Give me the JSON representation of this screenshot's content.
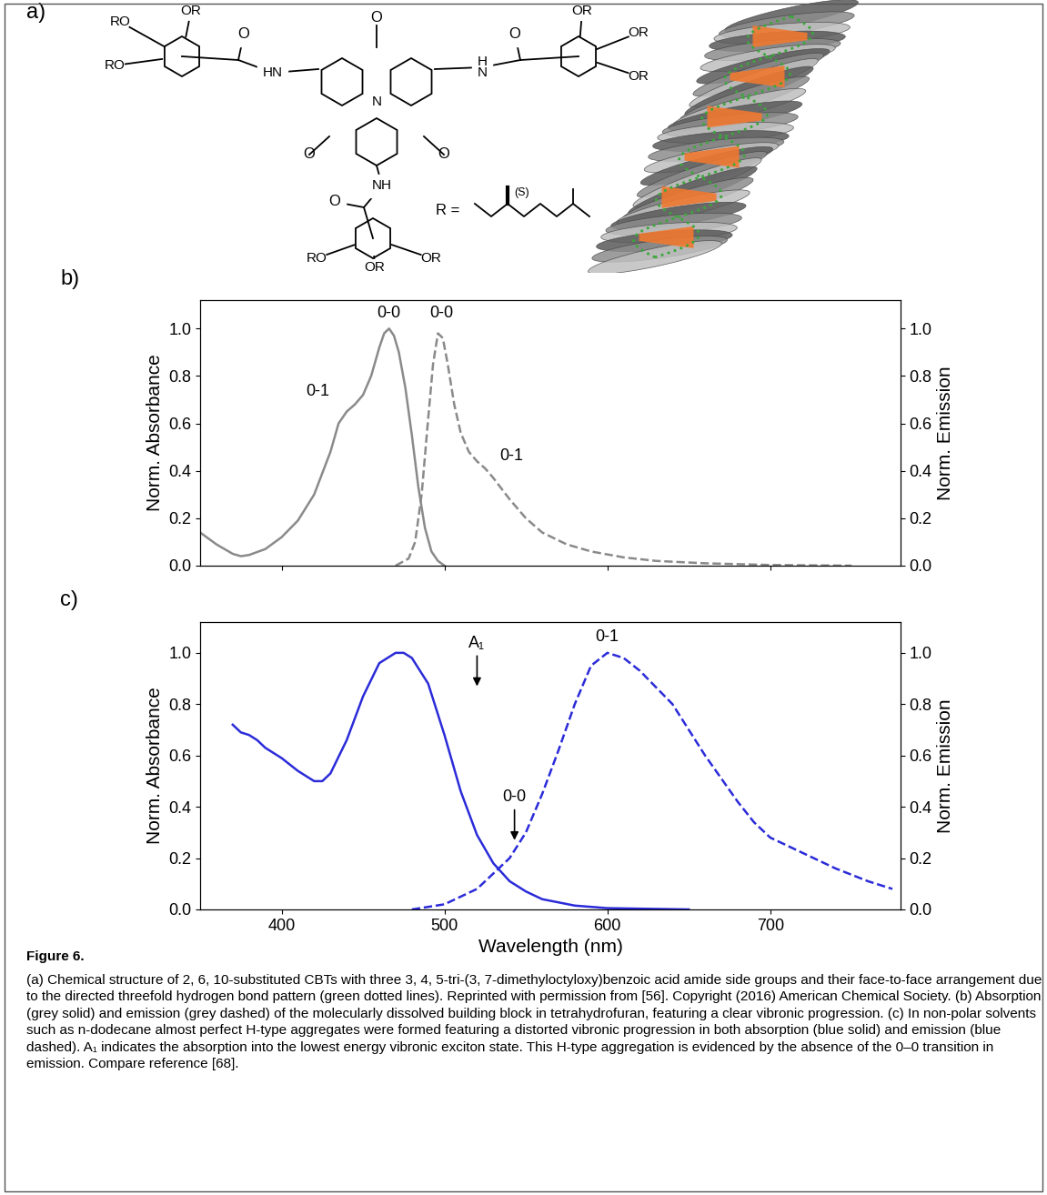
{
  "panel_a": {
    "label": "a)",
    "core": {
      "N": "N",
      "carbonyls": [
        "O",
        "O",
        "O"
      ]
    },
    "amides": [
      {
        "nh": "HN",
        "o": "O",
        "ring": [
          "OR",
          "RO",
          "RO"
        ]
      },
      {
        "nh": "H\nN",
        "o": "O",
        "ring": [
          "OR",
          "OR",
          "OR"
        ]
      },
      {
        "nh": "NH",
        "o": "O",
        "ring": [
          "RO",
          "OR",
          "OR"
        ]
      }
    ],
    "side_chain": {
      "label": "R =",
      "stereo": "(S)"
    }
  },
  "chart_data": [
    {
      "type": "line",
      "panel_label": "b)",
      "ylabel": "Norm. Absorbance",
      "y2label": "Norm. Emission",
      "xlim": [
        350,
        780
      ],
      "xticks": [
        400,
        500,
        600,
        700
      ],
      "tick_labels": "y",
      "ylim": [
        0,
        1.12
      ],
      "yticks": [
        0.0,
        0.2,
        0.4,
        0.6,
        0.8,
        1.0
      ],
      "y2lim": [
        0,
        1.12
      ],
      "y2ticks": [
        0.0,
        0.2,
        0.4,
        0.6,
        0.8,
        1.0
      ],
      "series": [
        {
          "color": "#8a8a8a",
          "line_style": "solid",
          "x": [
            350,
            360,
            370,
            375,
            380,
            390,
            400,
            410,
            420,
            430,
            435,
            440,
            445,
            450,
            455,
            460,
            463,
            466,
            469,
            472,
            476,
            480,
            484,
            488,
            492,
            496,
            500
          ],
          "values": [
            0.14,
            0.09,
            0.05,
            0.04,
            0.045,
            0.07,
            0.12,
            0.19,
            0.3,
            0.48,
            0.6,
            0.65,
            0.68,
            0.72,
            0.8,
            0.92,
            0.98,
            1.0,
            0.97,
            0.9,
            0.75,
            0.55,
            0.33,
            0.16,
            0.06,
            0.02,
            0.0
          ]
        },
        {
          "color": "#8a8a8a",
          "line_style": "dashed",
          "axis": "y2",
          "x": [
            470,
            478,
            482,
            486,
            490,
            493,
            496,
            499,
            502,
            506,
            510,
            515,
            520,
            525,
            530,
            540,
            550,
            560,
            575,
            590,
            610,
            630,
            660,
            700,
            750
          ],
          "values": [
            0.0,
            0.03,
            0.1,
            0.3,
            0.62,
            0.85,
            0.98,
            0.96,
            0.85,
            0.68,
            0.56,
            0.48,
            0.44,
            0.41,
            0.37,
            0.28,
            0.2,
            0.14,
            0.09,
            0.06,
            0.035,
            0.02,
            0.01,
            0.003,
            0.0
          ]
        }
      ],
      "annotations": [
        {
          "text": "0-0",
          "x": 466,
          "y": 1.03
        },
        {
          "text": "0-1",
          "x": 422,
          "y": 0.7
        },
        {
          "text": "0-0",
          "x": 498,
          "y": 1.03
        },
        {
          "text": "0-1",
          "x": 541,
          "y": 0.43
        }
      ]
    },
    {
      "type": "line",
      "panel_label": "c)",
      "xlabel": "Wavelength (nm)",
      "ylabel": "Norm. Absorbance",
      "y2label": "Norm. Emission",
      "xlim": [
        350,
        780
      ],
      "xticks": [
        400,
        500,
        600,
        700
      ],
      "ylim": [
        0,
        1.12
      ],
      "yticks": [
        0.0,
        0.2,
        0.4,
        0.6,
        0.8,
        1.0
      ],
      "y2lim": [
        0,
        1.12
      ],
      "y2ticks": [
        0.0,
        0.2,
        0.4,
        0.6,
        0.8,
        1.0
      ],
      "series": [
        {
          "color": "#2b2bd9",
          "line_style": "solid",
          "x": [
            370,
            375,
            380,
            385,
            390,
            400,
            410,
            420,
            425,
            430,
            440,
            450,
            460,
            470,
            475,
            480,
            490,
            500,
            510,
            520,
            530,
            540,
            550,
            560,
            580,
            600,
            650
          ],
          "values": [
            0.72,
            0.69,
            0.68,
            0.66,
            0.63,
            0.59,
            0.54,
            0.5,
            0.5,
            0.53,
            0.66,
            0.83,
            0.96,
            1.0,
            1.0,
            0.98,
            0.88,
            0.68,
            0.46,
            0.29,
            0.18,
            0.11,
            0.07,
            0.04,
            0.015,
            0.005,
            0.0
          ]
        },
        {
          "color": "#2b2bd9",
          "line_style": "dashed",
          "axis": "y2",
          "x": [
            480,
            500,
            520,
            540,
            550,
            560,
            570,
            580,
            590,
            600,
            610,
            620,
            640,
            660,
            680,
            690,
            700,
            720,
            740,
            760,
            775
          ],
          "values": [
            0.0,
            0.02,
            0.08,
            0.2,
            0.3,
            0.45,
            0.62,
            0.8,
            0.95,
            1.0,
            0.98,
            0.93,
            0.8,
            0.6,
            0.42,
            0.34,
            0.28,
            0.22,
            0.16,
            0.11,
            0.08
          ]
        }
      ],
      "annotations": [
        {
          "text": "A₁",
          "x": 520,
          "y": 0.86,
          "marker": "arrow"
        },
        {
          "text": "0-0",
          "x": 543,
          "y": 0.26,
          "marker": "arrow"
        },
        {
          "text": "0-1",
          "x": 600,
          "y": 1.03
        }
      ]
    }
  ],
  "caption_label": "Figure 6.",
  "caption": "(a) Chemical structure of 2, 6, 10-substituted CBTs with three 3, 4, 5-tri-(3, 7-dimethyloctyloxy)benzoic acid amide side groups and their face-to-face arrangement due to the directed threefold hydrogen bond pattern (green dotted lines). Reprinted with permission from [56]. Copyright (2016) American Chemical Society. (b) Absorption (grey solid) and emission (grey dashed) of the molecularly dissolved building block in tetrahydrofuran, featuring a clear vibronic progression. (c) In non-polar solvents such as n-dodecane almost perfect H-type aggregates were formed featuring a distorted vibronic progression in both absorption (blue solid) and emission (blue dashed). A₁ indicates the absorption into the lowest energy vibronic exciton state. This H-type aggregation is evidenced by the absence of the 0–0 transition in emission. Compare reference [68]."
}
